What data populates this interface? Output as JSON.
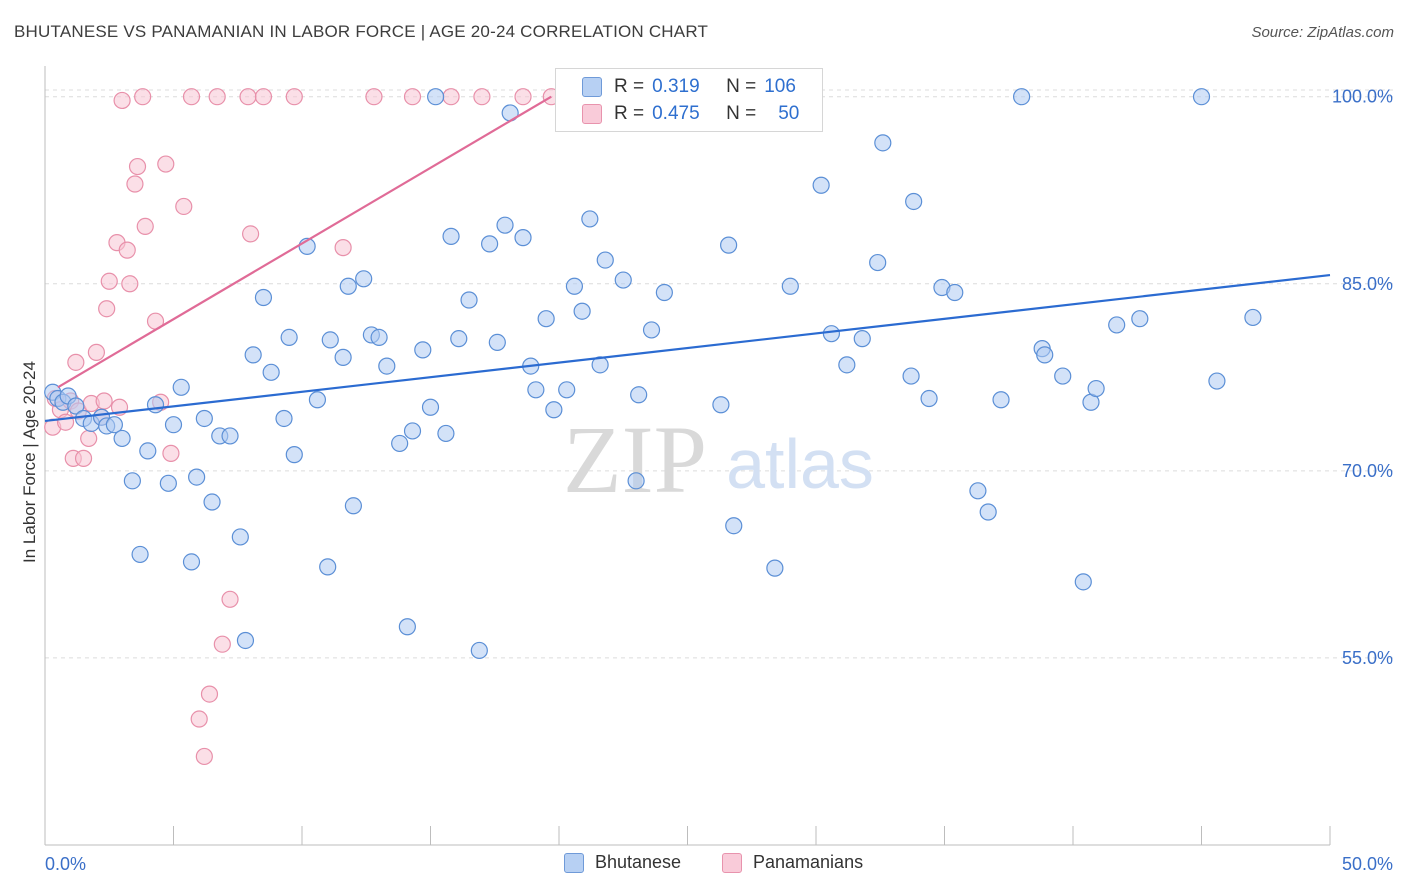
{
  "title": "BHUTANESE VS PANAMANIAN IN LABOR FORCE | AGE 20-24 CORRELATION CHART",
  "source": "Source: ZipAtlas.com",
  "watermark": {
    "zip": "ZIP",
    "atlas": "atlas"
  },
  "legend_top": [
    {
      "r_label": "R =",
      "r_value": "0.319",
      "n_label": "N =",
      "n_value": "106"
    },
    {
      "r_label": "R =",
      "r_value": "0.475",
      "n_label": "N =",
      "n_value": "50"
    }
  ],
  "legend_bottom": [
    "Bhutanese",
    "Panamanians"
  ],
  "colors": {
    "blue_fill": "#aecbf2",
    "blue_stroke": "#5b8fd6",
    "blue_line": "#2b6bd1",
    "pink_fill": "#f7c5d4",
    "pink_stroke": "#e890aa",
    "pink_line": "#e06b97",
    "tick_label": "#3a6fc8",
    "grid": "#dcdcdc"
  },
  "chart_data": {
    "type": "scatter",
    "title": "BHUTANESE VS PANAMANIAN IN LABOR FORCE | AGE 20-24 CORRELATION CHART",
    "xlabel": "",
    "ylabel": "In Labor Force | Age 20-24",
    "xlim": [
      0,
      50
    ],
    "ylim": [
      40,
      101.5
    ],
    "x_tick_labels": [
      "0.0%",
      "50.0%"
    ],
    "y_ticks": [
      55,
      70,
      85,
      100
    ],
    "y_tick_labels": [
      "55.0%",
      "70.0%",
      "85.0%",
      "100.0%"
    ],
    "grid": true,
    "legend_position": "top-center",
    "series": [
      {
        "name": "Bhutanese",
        "color": "#aecbf2",
        "trend": {
          "x": [
            0,
            50
          ],
          "y": [
            74.0,
            85.7
          ]
        },
        "points": [
          [
            0.3,
            76.3
          ],
          [
            0.5,
            75.8
          ],
          [
            0.7,
            75.5
          ],
          [
            0.9,
            76.0
          ],
          [
            1.2,
            75.2
          ],
          [
            1.5,
            74.2
          ],
          [
            1.8,
            73.8
          ],
          [
            2.2,
            74.3
          ],
          [
            2.4,
            73.6
          ],
          [
            2.7,
            73.7
          ],
          [
            3.0,
            72.6
          ],
          [
            3.4,
            69.2
          ],
          [
            3.7,
            63.3
          ],
          [
            4.0,
            71.6
          ],
          [
            4.3,
            75.3
          ],
          [
            4.8,
            69.0
          ],
          [
            5.0,
            73.7
          ],
          [
            5.3,
            76.7
          ],
          [
            5.7,
            62.7
          ],
          [
            5.9,
            69.5
          ],
          [
            6.2,
            74.2
          ],
          [
            6.5,
            67.5
          ],
          [
            6.8,
            72.8
          ],
          [
            7.2,
            72.8
          ],
          [
            7.6,
            64.7
          ],
          [
            7.8,
            56.4
          ],
          [
            8.1,
            79.3
          ],
          [
            8.5,
            83.9
          ],
          [
            8.8,
            77.9
          ],
          [
            9.3,
            74.2
          ],
          [
            9.5,
            80.7
          ],
          [
            9.7,
            71.3
          ],
          [
            10.2,
            88.0
          ],
          [
            10.6,
            75.7
          ],
          [
            11.0,
            62.3
          ],
          [
            11.1,
            80.5
          ],
          [
            11.6,
            79.1
          ],
          [
            11.8,
            84.8
          ],
          [
            12.0,
            67.2
          ],
          [
            12.4,
            85.4
          ],
          [
            12.7,
            80.9
          ],
          [
            13.0,
            80.7
          ],
          [
            13.3,
            78.4
          ],
          [
            13.8,
            72.2
          ],
          [
            14.1,
            57.5
          ],
          [
            14.3,
            73.2
          ],
          [
            14.7,
            79.7
          ],
          [
            15.0,
            75.1
          ],
          [
            15.2,
            100.0
          ],
          [
            15.6,
            73.0
          ],
          [
            15.8,
            88.8
          ],
          [
            16.1,
            80.6
          ],
          [
            16.5,
            83.7
          ],
          [
            16.9,
            55.6
          ],
          [
            17.3,
            88.2
          ],
          [
            17.6,
            80.3
          ],
          [
            17.9,
            89.7
          ],
          [
            18.1,
            98.7
          ],
          [
            18.6,
            88.7
          ],
          [
            18.9,
            78.4
          ],
          [
            19.1,
            76.5
          ],
          [
            19.5,
            82.2
          ],
          [
            19.8,
            74.9
          ],
          [
            20.3,
            76.5
          ],
          [
            20.6,
            84.8
          ],
          [
            20.9,
            82.8
          ],
          [
            21.2,
            90.2
          ],
          [
            21.6,
            78.5
          ],
          [
            21.8,
            86.9
          ],
          [
            22.5,
            85.3
          ],
          [
            23.0,
            69.2
          ],
          [
            23.1,
            76.1
          ],
          [
            23.6,
            81.3
          ],
          [
            24.1,
            84.3
          ],
          [
            25.5,
            100.0
          ],
          [
            26.3,
            75.3
          ],
          [
            26.6,
            88.1
          ],
          [
            26.8,
            65.6
          ],
          [
            28.4,
            62.2
          ],
          [
            29.0,
            84.8
          ],
          [
            30.2,
            92.9
          ],
          [
            30.6,
            81.0
          ],
          [
            31.2,
            78.5
          ],
          [
            31.8,
            80.6
          ],
          [
            32.4,
            86.7
          ],
          [
            32.6,
            96.3
          ],
          [
            33.7,
            77.6
          ],
          [
            33.8,
            91.6
          ],
          [
            34.4,
            75.8
          ],
          [
            34.9,
            84.7
          ],
          [
            35.4,
            84.3
          ],
          [
            36.3,
            68.4
          ],
          [
            36.7,
            66.7
          ],
          [
            37.2,
            75.7
          ],
          [
            38.0,
            100.0
          ],
          [
            38.8,
            79.8
          ],
          [
            38.9,
            79.3
          ],
          [
            39.6,
            77.6
          ],
          [
            40.4,
            61.1
          ],
          [
            40.7,
            75.5
          ],
          [
            40.9,
            76.6
          ],
          [
            41.7,
            81.7
          ],
          [
            42.6,
            82.2
          ],
          [
            45.0,
            100.0
          ],
          [
            45.6,
            77.2
          ],
          [
            47.0,
            82.3
          ]
        ]
      },
      {
        "name": "Panamanians",
        "color": "#f7c5d4",
        "trend": {
          "x": [
            0.5,
            19.7
          ],
          "y": [
            76.7,
            100.0
          ]
        },
        "points": [
          [
            0.3,
            73.5
          ],
          [
            0.4,
            75.8
          ],
          [
            0.6,
            74.9
          ],
          [
            0.8,
            73.9
          ],
          [
            1.0,
            75.6
          ],
          [
            1.1,
            71.0
          ],
          [
            1.2,
            78.7
          ],
          [
            1.3,
            74.8
          ],
          [
            1.5,
            71.0
          ],
          [
            1.7,
            72.6
          ],
          [
            1.8,
            75.4
          ],
          [
            2.0,
            79.5
          ],
          [
            2.2,
            74.3
          ],
          [
            2.3,
            75.6
          ],
          [
            2.4,
            83.0
          ],
          [
            2.5,
            85.2
          ],
          [
            2.8,
            88.3
          ],
          [
            2.9,
            75.1
          ],
          [
            3.0,
            99.7
          ],
          [
            3.2,
            87.7
          ],
          [
            3.3,
            85.0
          ],
          [
            3.5,
            93.0
          ],
          [
            3.6,
            94.4
          ],
          [
            3.8,
            100.0
          ],
          [
            3.9,
            89.6
          ],
          [
            4.3,
            82.0
          ],
          [
            4.5,
            75.5
          ],
          [
            4.7,
            94.6
          ],
          [
            4.9,
            71.4
          ],
          [
            5.4,
            91.2
          ],
          [
            5.7,
            100.0
          ],
          [
            6.0,
            50.1
          ],
          [
            6.2,
            47.1
          ],
          [
            6.4,
            52.1
          ],
          [
            6.7,
            100.0
          ],
          [
            6.9,
            56.1
          ],
          [
            7.2,
            59.7
          ],
          [
            7.9,
            100.0
          ],
          [
            8.0,
            89.0
          ],
          [
            8.5,
            100.0
          ],
          [
            9.7,
            100.0
          ],
          [
            11.6,
            87.9
          ],
          [
            12.8,
            100.0
          ],
          [
            14.3,
            100.0
          ],
          [
            15.8,
            100.0
          ],
          [
            17.0,
            100.0
          ],
          [
            18.6,
            100.0
          ],
          [
            19.7,
            100.0
          ],
          [
            21.2,
            98.5
          ],
          [
            22.6,
            100.0
          ]
        ]
      }
    ]
  }
}
